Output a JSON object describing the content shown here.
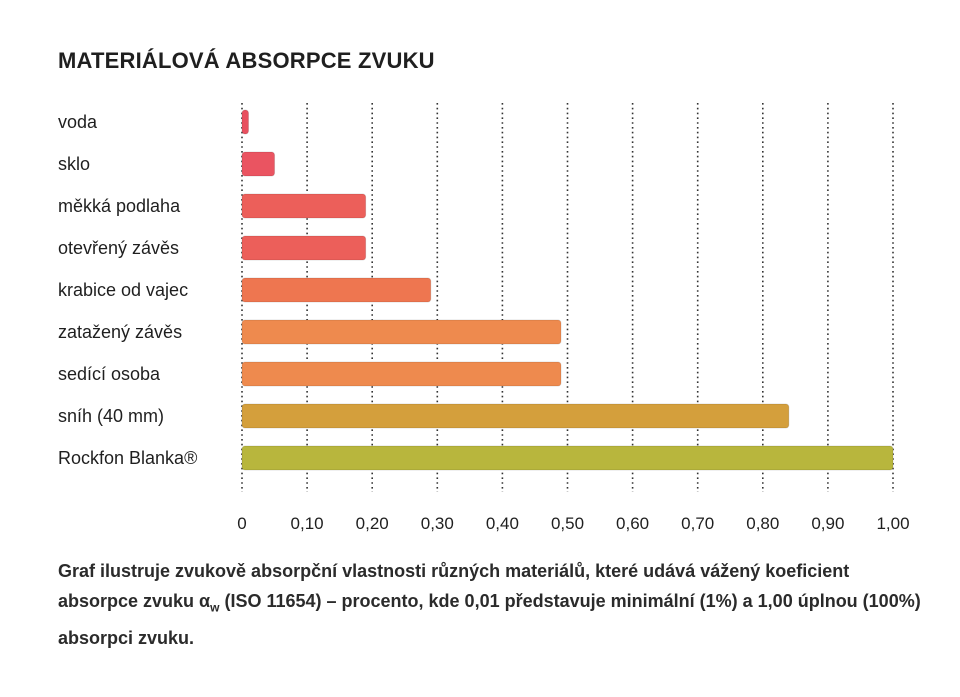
{
  "chart_data": {
    "type": "bar",
    "orientation": "horizontal",
    "title": "MATERIÁLOVÁ ABSORPCE ZVUKU",
    "categories": [
      "voda",
      "sklo",
      "měkká podlaha",
      "otevřený závěs",
      "krabice od vajec",
      "zatažený závěs",
      "sedící osoba",
      "sníh (40 mm)",
      "Rockfon Blanka®"
    ],
    "values": [
      0.01,
      0.05,
      0.19,
      0.19,
      0.29,
      0.49,
      0.49,
      0.84,
      1.0
    ],
    "colors": [
      "#e8505f",
      "#ea5461",
      "#ec5f5a",
      "#ec5f5a",
      "#ee7650",
      "#ee8a4e",
      "#ee8a4e",
      "#d49f3c",
      "#b8b63d"
    ],
    "xlim": [
      0,
      1.0
    ],
    "xticks": [
      "0",
      "0,10",
      "0,20",
      "0,30",
      "0,40",
      "0,50",
      "0,60",
      "0,70",
      "0,80",
      "0,90",
      "1,00"
    ],
    "grid": "vertical dotted",
    "xlabel": "",
    "ylabel": ""
  },
  "caption": {
    "part1": "Graf ilustruje zvukově absorpční vlastnosti různých materiálů, které udává vážený koeficient absorpce zvuku α",
    "subscript": "w",
    "part2": " (ISO 11654) – procento, kde 0,01 představuje minimální (1%) a 1,00 úplnou (100%) absorpci zvuku."
  }
}
